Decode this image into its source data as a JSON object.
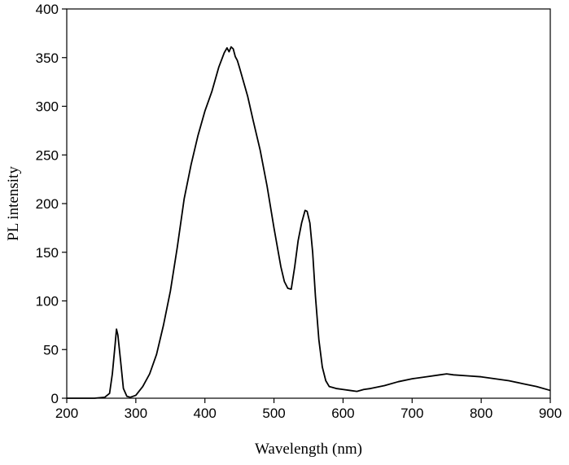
{
  "chart_data": {
    "type": "line",
    "title": "",
    "xlabel": "Wavelength (nm)",
    "ylabel": "PL intensity",
    "xlim": [
      200,
      900
    ],
    "ylim": [
      0,
      400
    ],
    "xticks": [
      200,
      300,
      400,
      500,
      600,
      700,
      800,
      900
    ],
    "yticks": [
      0,
      50,
      100,
      150,
      200,
      250,
      300,
      350,
      400
    ],
    "grid": false,
    "legend": "none",
    "series": [
      {
        "color": "#000000",
        "x": [
          200,
          240,
          255,
          262,
          266,
          270,
          272,
          274,
          278,
          282,
          287,
          292,
          300,
          310,
          320,
          330,
          340,
          350,
          360,
          370,
          380,
          390,
          400,
          410,
          420,
          428,
          432,
          435,
          438,
          441,
          444,
          447,
          450,
          456,
          462,
          470,
          480,
          490,
          500,
          510,
          515,
          520,
          525,
          530,
          535,
          540,
          545,
          548,
          552,
          556,
          560,
          565,
          570,
          575,
          580,
          590,
          600,
          610,
          620,
          630,
          640,
          660,
          680,
          700,
          720,
          740,
          750,
          760,
          780,
          800,
          820,
          840,
          860,
          880,
          900
        ],
        "values": [
          0,
          0,
          1,
          5,
          25,
          55,
          71,
          65,
          38,
          10,
          2,
          1,
          3,
          12,
          25,
          45,
          75,
          110,
          155,
          205,
          240,
          270,
          295,
          315,
          340,
          355,
          360,
          356,
          361,
          359,
          351,
          347,
          340,
          325,
          310,
          285,
          255,
          218,
          175,
          135,
          120,
          113,
          112,
          135,
          162,
          180,
          193,
          192,
          180,
          150,
          105,
          60,
          32,
          18,
          12,
          10,
          9,
          8,
          7,
          9,
          10,
          13,
          17,
          20,
          22,
          24,
          25,
          24,
          23,
          22,
          20,
          18,
          15,
          12,
          8
        ]
      }
    ]
  }
}
